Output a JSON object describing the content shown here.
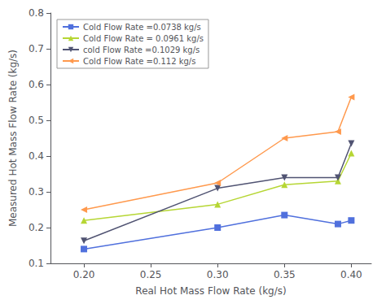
{
  "chart_data": {
    "type": "line",
    "xlabel": "Real Hot Mass Flow Rate (kg/s)",
    "ylabel": "Measured Hot Mass Flow Rate (kg/s)",
    "x": [
      0.2,
      0.3,
      0.35,
      0.39,
      0.4
    ],
    "series": [
      {
        "name": "Cold Flow Rate =0.0738 kg/s",
        "values": [
          0.14,
          0.2,
          0.235,
          0.21,
          0.22
        ],
        "marker": "square",
        "line_style": "solid"
      },
      {
        "name": "Cold Flow Rate = 0.0961 kg/s",
        "values": [
          0.22,
          0.265,
          0.32,
          0.33,
          0.408
        ],
        "marker": "triangle_up",
        "line_style": "solid"
      },
      {
        "name": "cold Flow Rate =0.1029 kg/s",
        "values": [
          0.163,
          0.31,
          0.34,
          0.34,
          0.435
        ],
        "marker": "triangle_down",
        "line_style": "solid"
      },
      {
        "name": "Cold Flow Rate =0.112 kg/s",
        "values": [
          0.25,
          0.325,
          0.45,
          0.468,
          0.565
        ],
        "marker": "triangle_left",
        "line_style": "solid"
      }
    ],
    "xlim": [
      0.175,
      0.415
    ],
    "ylim": [
      0.1,
      0.8
    ],
    "xticks": [
      {
        "value": 0.2,
        "label": "0.20"
      },
      0.25,
      {
        "value": 0.3,
        "label": "0.30"
      },
      0.35,
      {
        "value": 0.4,
        "label": "0.40"
      }
    ],
    "yticks": [
      0.1,
      0.2,
      0.3,
      0.4,
      0.5,
      0.6,
      0.7,
      0.8
    ],
    "legend": "upper left",
    "grid": false
  }
}
